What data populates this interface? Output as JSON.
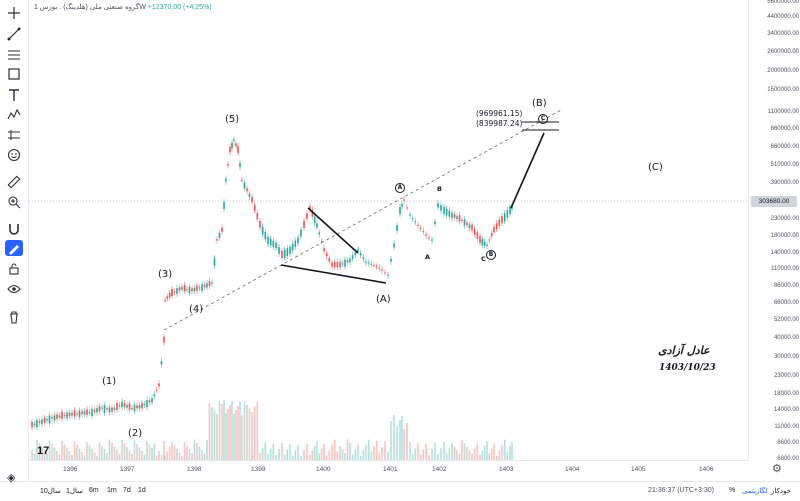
{
  "header": {
    "symbol_name": "گروه صنعتی ملی (هلدینگ)",
    "exchange": "بورس",
    "interval": "1W",
    "change": "+12370.00 (+4.25%)"
  },
  "toolbar": {
    "tools": [
      "crosshair-icon",
      "trend-line-icon",
      "pitchfork-icon",
      "rectangle-icon",
      "text-tool-icon",
      "elliott-wave-icon",
      "measure-icon",
      "emoji-icon",
      "ruler-icon",
      "zoom-in-icon",
      "magnet-icon",
      "lock-drawings-icon",
      "lock-icon",
      "eye-icon",
      "trash-icon"
    ],
    "active_tool": "magnet-icon"
  },
  "price_axis": {
    "labels": [
      "5600000.00",
      "4400000.00",
      "3400000.00",
      "2600000.00",
      "2000000.00",
      "1500000.00",
      "1100000.00",
      "860000.00",
      "660000.00",
      "510000.00",
      "390000.00",
      "303680.00",
      "230000.00",
      "180000.00",
      "140000.00",
      "110000.00",
      "86000.00",
      "66000.00",
      "52000.00",
      "40000.00",
      "30000.00",
      "23000.00",
      "18000.00",
      "14000.00",
      "11000.00",
      "8600.00",
      "6800.00"
    ],
    "current_price": "303680.00"
  },
  "time_axis": {
    "labels": [
      "1396",
      "1397",
      "1398",
      "1399",
      "1400",
      "1401",
      "1402",
      "1403",
      "1404",
      "1405",
      "1406"
    ]
  },
  "waves": {
    "w1": "(1)",
    "w2": "(2)",
    "w3": "(3)",
    "w4": "(4)",
    "w5": "(5)",
    "wA": "(A)",
    "wB": "(B)",
    "wC": "(C)",
    "circle_a": "A",
    "circle_b": "B",
    "circle_c": "C",
    "small_a": "A",
    "small_b": "B",
    "small_c": "C"
  },
  "targets": {
    "upper": "(969961.15)",
    "lower": "(839987.24)"
  },
  "signature": {
    "name": "عادل آزادی",
    "date": "1403/10/23"
  },
  "bottom_bar": {
    "ranges": [
      "10سال",
      "1سال",
      "6m",
      "1m",
      "7d",
      "1d"
    ],
    "clock": "21:36:37 (UTC+3:30)",
    "percent": "%",
    "log": "لگاریتمی",
    "auto": "خودکار"
  },
  "colors": {
    "up": "#26a69a",
    "down": "#ef5350",
    "accent": "#2962ff"
  }
}
